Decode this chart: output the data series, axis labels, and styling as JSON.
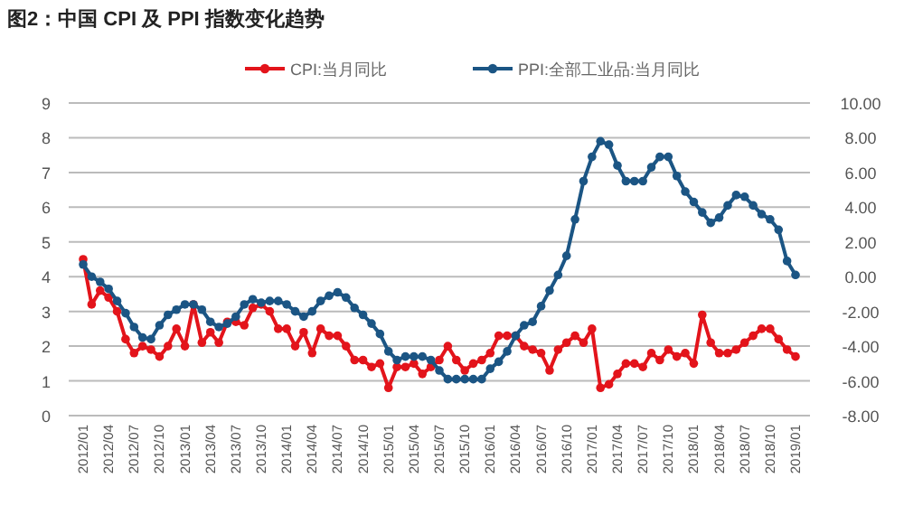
{
  "chart_data": {
    "type": "line",
    "title": "图2：中国 CPI 及 PPI 指数变化趋势",
    "categories": [
      "2012/01",
      null,
      null,
      "2012/04",
      null,
      null,
      "2012/07",
      null,
      null,
      "2012/10",
      null,
      null,
      "2013/01",
      null,
      null,
      "2013/04",
      null,
      null,
      "2013/07",
      null,
      null,
      "2013/10",
      null,
      null,
      "2014/01",
      null,
      null,
      "2014/04",
      null,
      null,
      "2014/07",
      null,
      null,
      "2014/10",
      null,
      null,
      "2015/01",
      null,
      null,
      "2015/04",
      null,
      null,
      "2015/07",
      null,
      null,
      "2015/10",
      null,
      null,
      "2016/01",
      null,
      null,
      "2016/04",
      null,
      null,
      "2016/07",
      null,
      null,
      "2016/10",
      null,
      null,
      "2017/01",
      null,
      null,
      "2017/04",
      null,
      null,
      "2017/07",
      null,
      null,
      "2017/10",
      null,
      null,
      "2018/01",
      null,
      null,
      "2018/04",
      null,
      null,
      "2018/07",
      null,
      null,
      "2018/10",
      null,
      null,
      "2019/01"
    ],
    "series": [
      {
        "name": "CPI:当月同比",
        "color": "#e3141b",
        "values": [
          4.5,
          3.2,
          3.6,
          3.4,
          3.0,
          2.2,
          1.8,
          2.0,
          1.9,
          1.7,
          2.0,
          2.5,
          2.0,
          3.2,
          2.1,
          2.4,
          2.1,
          2.7,
          2.7,
          2.6,
          3.1,
          3.2,
          3.0,
          2.5,
          2.5,
          2.0,
          2.4,
          1.8,
          2.5,
          2.3,
          2.3,
          2.0,
          1.6,
          1.6,
          1.4,
          1.5,
          0.8,
          1.4,
          1.4,
          1.5,
          1.2,
          1.4,
          1.6,
          2.0,
          1.6,
          1.3,
          1.5,
          1.6,
          1.8,
          2.3,
          2.3,
          2.3,
          2.0,
          1.9,
          1.8,
          1.3,
          1.9,
          2.1,
          2.3,
          2.1,
          2.5,
          0.8,
          0.9,
          1.2,
          1.5,
          1.5,
          1.4,
          1.8,
          1.6,
          1.9,
          1.7,
          1.8,
          1.5,
          2.9,
          2.1,
          1.8,
          1.8,
          1.9,
          2.1,
          2.3,
          2.5,
          2.5,
          2.2,
          1.9,
          1.7
        ]
      },
      {
        "name": "PPI:全部工业品:当月同比",
        "color": "#1b5584",
        "axis": "y2",
        "values": [
          0.7,
          0.0,
          -0.3,
          -0.7,
          -1.4,
          -2.1,
          -2.9,
          -3.5,
          -3.6,
          -2.8,
          -2.2,
          -1.9,
          -1.6,
          -1.6,
          -1.9,
          -2.6,
          -2.9,
          -2.7,
          -2.3,
          -1.6,
          -1.3,
          -1.5,
          -1.4,
          -1.4,
          -1.6,
          -2.0,
          -2.3,
          -2.0,
          -1.4,
          -1.1,
          -0.9,
          -1.2,
          -1.8,
          -2.2,
          -2.7,
          -3.3,
          -4.3,
          -4.8,
          -4.6,
          -4.6,
          -4.6,
          -4.8,
          -5.4,
          -5.9,
          -5.9,
          -5.9,
          -5.9,
          -5.9,
          -5.3,
          -4.9,
          -4.3,
          -3.4,
          -2.8,
          -2.6,
          -1.7,
          -0.8,
          0.1,
          1.2,
          3.3,
          5.5,
          6.9,
          7.8,
          7.6,
          6.4,
          5.5,
          5.5,
          5.5,
          6.3,
          6.9,
          6.9,
          5.8,
          4.9,
          4.3,
          3.7,
          3.1,
          3.4,
          4.1,
          4.7,
          4.6,
          4.1,
          3.6,
          3.3,
          2.7,
          0.9,
          0.1
        ]
      }
    ],
    "ylim": [
      0,
      9
    ],
    "yticks": [
      0,
      1,
      2,
      3,
      4,
      5,
      6,
      7,
      8,
      9
    ],
    "y2lim": [
      -8,
      10
    ],
    "y2ticks": [
      {
        "value": -8,
        "label": "-8.00"
      },
      {
        "value": -6,
        "label": "-6.00"
      },
      {
        "value": -4,
        "label": "-4.00"
      },
      {
        "value": -2,
        "label": "-2.00"
      },
      {
        "value": 0,
        "label": "0.00"
      },
      {
        "value": 2,
        "label": "2.00"
      },
      {
        "value": 4,
        "label": "4.00"
      },
      {
        "value": 6,
        "label": "6.00"
      },
      {
        "value": 8,
        "label": "8.00"
      },
      {
        "value": 10,
        "label": "10.00"
      }
    ],
    "grid": "y",
    "legend": "top",
    "marker": "circle",
    "line_style": "solid"
  }
}
